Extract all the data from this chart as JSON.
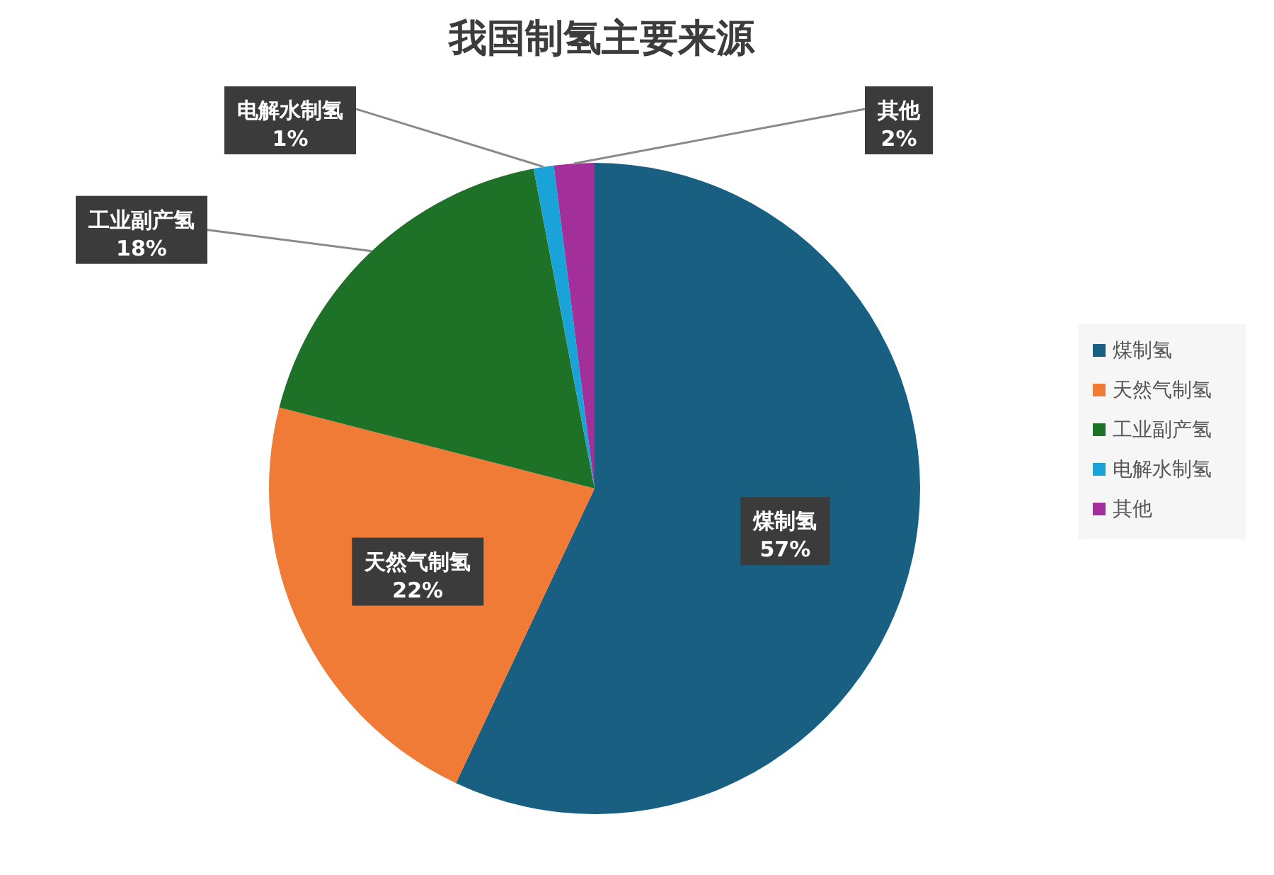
{
  "chart_data": {
    "type": "pie",
    "title": "我国制氢主要来源",
    "categories": [
      "煤制氢",
      "天然气制氢",
      "工业副产氢",
      "电解水制氢",
      "其他"
    ],
    "values": [
      57,
      22,
      18,
      1,
      2
    ],
    "colors": [
      "#195f82",
      "#f07b36",
      "#1e7228",
      "#1aa3d8",
      "#a3309a"
    ],
    "value_labels": [
      "57%",
      "22%",
      "18%",
      "1%",
      "2%"
    ],
    "legend": "right"
  }
}
